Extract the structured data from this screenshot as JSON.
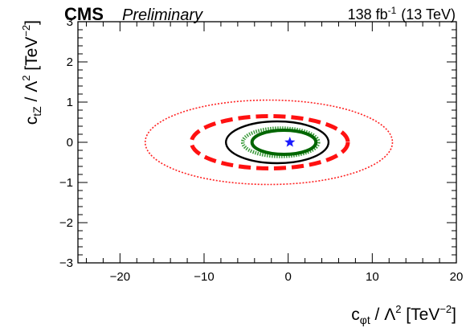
{
  "header": {
    "experiment": "CMS",
    "status": "Preliminary",
    "lumi_value": "138 fb",
    "lumi_exponent": "-1",
    "energy": "(13 TeV)"
  },
  "chart_data": {
    "type": "contour",
    "xlabel": "c_{φt} / Λ² [TeV⁻²]",
    "ylabel": "c_{tZ} / Λ² [TeV⁻²]",
    "xlim": [
      -25,
      20
    ],
    "ylim": [
      -3,
      3
    ],
    "x_ticks": [
      -20,
      -10,
      0,
      10,
      20
    ],
    "y_ticks": [
      -3,
      -2,
      -1,
      0,
      1,
      2,
      3
    ],
    "x_tick_labels": [
      "−20",
      "−10",
      "0",
      "10",
      "20"
    ],
    "y_tick_labels": [
      "−3",
      "−2",
      "−1",
      "0",
      "1",
      "2",
      "3"
    ],
    "best_fit": {
      "x": 0.2,
      "y": 0.0,
      "marker": "star",
      "color": "#1a1aff"
    },
    "contours": [
      {
        "cx": -2.3,
        "cy": 0.0,
        "rx": 14.7,
        "ry": 1.05,
        "color": "#ff2222",
        "style": "dotted"
      },
      {
        "cx": -2.2,
        "cy": 0.0,
        "rx": 9.3,
        "ry": 0.65,
        "color": "#ff1111",
        "style": "dashed"
      },
      {
        "cx": -1.3,
        "cy": 0.0,
        "rx": 6.1,
        "ry": 0.52,
        "color": "#000000",
        "style": "solid"
      },
      {
        "cx": -0.9,
        "cy": 0.0,
        "rx": 4.5,
        "ry": 0.35,
        "color": "#3a9a3a",
        "style": "dotted"
      },
      {
        "cx": -0.5,
        "cy": 0.0,
        "rx": 3.8,
        "ry": 0.3,
        "color": "#006600",
        "style": "solid"
      }
    ]
  }
}
